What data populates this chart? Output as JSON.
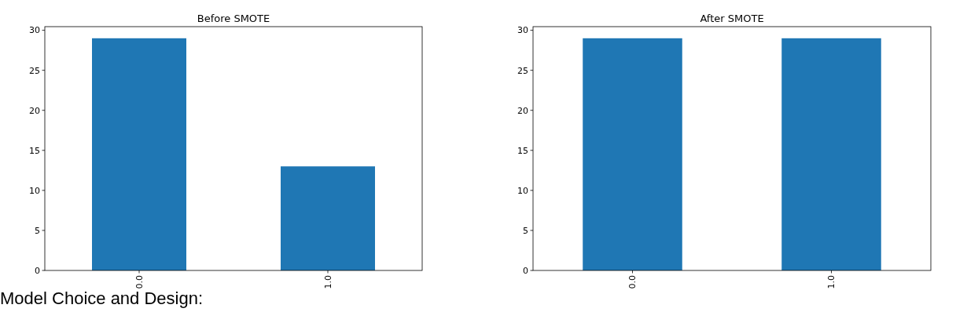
{
  "chart_data": [
    {
      "type": "bar",
      "title": "Before SMOTE",
      "categories": [
        "0.0",
        "1.0"
      ],
      "values": [
        29,
        13
      ],
      "color": "#1f77b4",
      "ylim": [
        0,
        30.45
      ],
      "yticks": [
        0,
        5,
        10,
        15,
        20,
        25,
        30
      ],
      "grid": false,
      "annotations": [
        "Model Choice and Design:"
      ]
    },
    {
      "type": "bar",
      "title": "After SMOTE",
      "categories": [
        "0.0",
        "1.0"
      ],
      "values": [
        29,
        29
      ],
      "color": "#1f77b4",
      "ylim": [
        0,
        30.45
      ],
      "yticks": [
        0,
        5,
        10,
        15,
        20,
        25,
        30
      ],
      "grid": false
    }
  ]
}
